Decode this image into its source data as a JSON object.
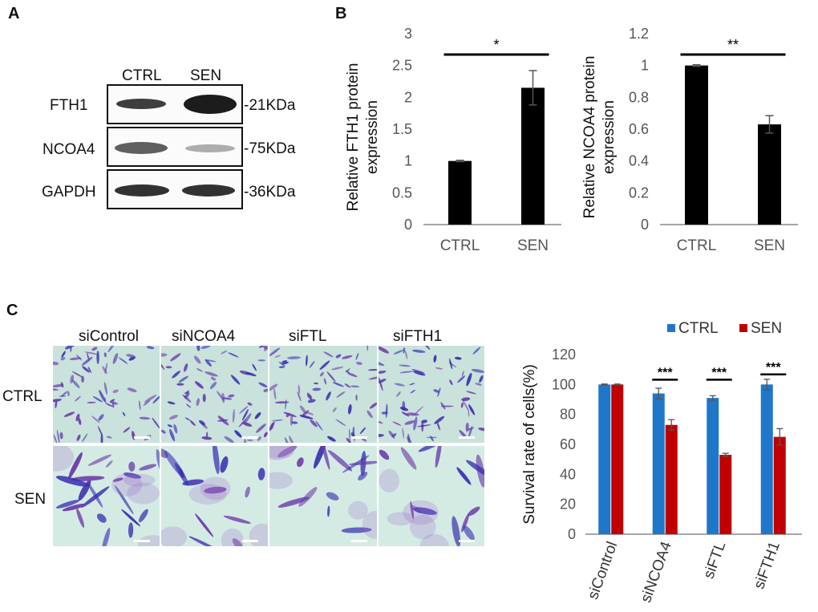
{
  "panels": {
    "a": "A",
    "b": "B",
    "c": "C"
  },
  "western_blot": {
    "lanes": [
      "CTRL",
      "SEN"
    ],
    "rows": [
      {
        "protein": "FTH1",
        "size": "-21KDa"
      },
      {
        "protein": "NCOA4",
        "size": "-75KDa"
      },
      {
        "protein": "GAPDH",
        "size": "-36KDa"
      }
    ]
  },
  "micrographs": {
    "columns": [
      "siControl",
      "siNCOA4",
      "siFTL",
      "siFTH1"
    ],
    "rows": [
      "CTRL",
      "SEN"
    ]
  },
  "chart_data": [
    {
      "type": "bar",
      "categories": [
        "CTRL",
        "SEN"
      ],
      "values": [
        1.0,
        2.15
      ],
      "errors": [
        0.01,
        0.27
      ],
      "ylabel": "Relative FTH1 protein expression",
      "ylabel_lines": [
        "Relative FTH1 protein",
        "expression"
      ],
      "ylim": [
        0,
        3
      ],
      "yticks": [
        "0",
        "0.5",
        "1",
        "1.5",
        "2",
        "2.5",
        "3"
      ],
      "significance": "*",
      "bar_color": "#000000"
    },
    {
      "type": "bar",
      "categories": [
        "CTRL",
        "SEN"
      ],
      "values": [
        1.0,
        0.63
      ],
      "errors": [
        0.005,
        0.055
      ],
      "ylabel": "Relative NCOA4 protein expression",
      "ylabel_lines": [
        "Relative NCOA4 protein",
        "expression"
      ],
      "ylim": [
        0,
        1.2
      ],
      "yticks": [
        "0",
        "0.2",
        "0.4",
        "0.6",
        "0.8",
        "1",
        "1.2"
      ],
      "significance": "**",
      "bar_color": "#000000"
    },
    {
      "type": "bar",
      "categories": [
        "siControl",
        "siNCOA4",
        "siFTL",
        "siFTH1"
      ],
      "series": [
        {
          "name": "CTRL",
          "color": "#1f77c9",
          "values": [
            100,
            94,
            91,
            100
          ],
          "errors": [
            0.3,
            3.5,
            1.5,
            3.5
          ]
        },
        {
          "name": "SEN",
          "color": "#c00000",
          "values": [
            100,
            73,
            53,
            65
          ],
          "errors": [
            0.3,
            3.5,
            1.0,
            5.5
          ]
        }
      ],
      "significance": [
        "",
        "***",
        "***",
        "***"
      ],
      "ylabel": "Survival rate of cells(%)",
      "ylim": [
        0,
        120
      ],
      "yticks": [
        "0",
        "20",
        "40",
        "60",
        "80",
        "100",
        "120"
      ],
      "legend": "top"
    }
  ]
}
